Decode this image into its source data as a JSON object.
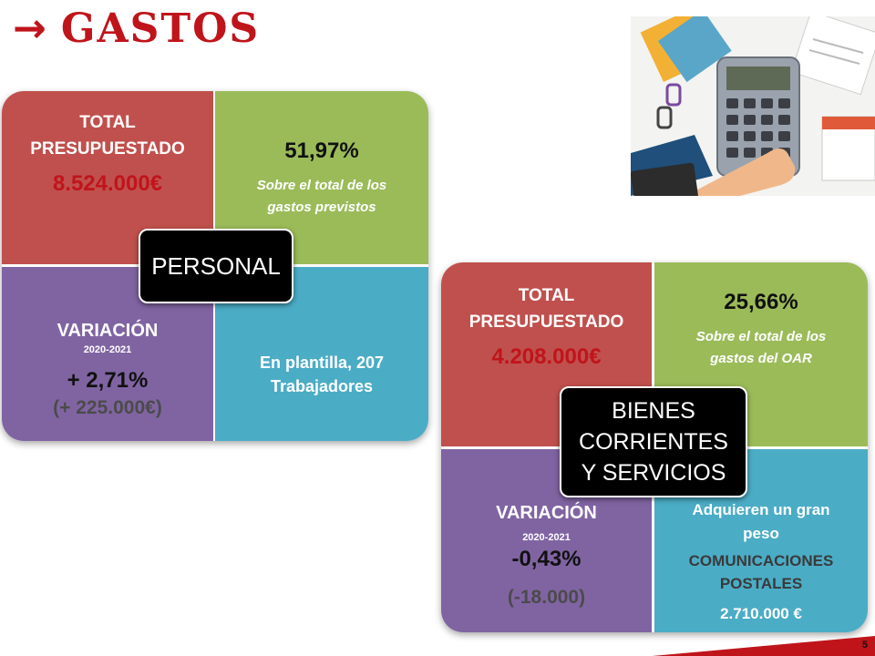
{
  "title": {
    "arrow": "→",
    "text": "GASTOS"
  },
  "personal": {
    "label": "PERSONAL",
    "total_label_1": "TOTAL",
    "total_label_2": "PRESUPUESTADO",
    "total_value": "8.524.000€",
    "pct": "51,97%",
    "pct_desc_1": "Sobre el total de los",
    "pct_desc_2": "gastos previstos",
    "variacion_label": "VARIACIÓN",
    "variacion_years": "2020-2021",
    "variacion_pct": "+ 2,71%",
    "variacion_amount": "(+ 225.000€)",
    "plantilla_1": "En plantilla, 207",
    "plantilla_2": "Trabajadores"
  },
  "bienes": {
    "label_1": "BIENES",
    "label_2": "CORRIENTES",
    "label_3": "Y SERVICIOS",
    "total_label_1": "TOTAL",
    "total_label_2": "PRESUPUESTADO",
    "total_value": "4.208.000€",
    "pct": "25,66%",
    "pct_desc_1": "Sobre el total de los",
    "pct_desc_2": "gastos del OAR",
    "variacion_label": "VARIACIÓN",
    "variacion_years": "2020-2021",
    "variacion_pct": "-0,43%",
    "variacion_amount": "(-18.000)",
    "peso_1": "Adquieren un gran",
    "peso_2": "peso",
    "com_1": "COMUNICACIONES",
    "com_2": "POSTALES",
    "com_value": "2.710.000 €"
  },
  "page_number": "5",
  "colors": {
    "red": "#c0504d",
    "green": "#9bbb59",
    "purple": "#8064a2",
    "teal": "#4bacc6",
    "title_red": "#c0141b"
  }
}
